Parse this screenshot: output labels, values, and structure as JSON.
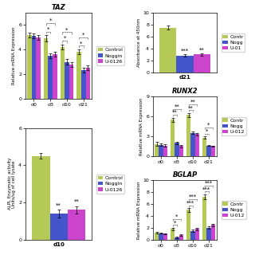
{
  "chart_data": [
    {
      "type": "bar",
      "title": "TAZ",
      "ylabel": "Relative mRNA Expression",
      "categories": [
        "d0",
        "d3",
        "d10",
        "d21"
      ],
      "series": [
        {
          "name": "Control",
          "color": "#b5c957",
          "values": [
            5.2,
            4.9,
            4.2,
            3.8
          ],
          "errors": [
            0.2,
            0.25,
            0.2,
            0.2
          ]
        },
        {
          "name": "Noggin",
          "color": "#4455cc",
          "values": [
            5.1,
            3.5,
            3.0,
            2.3
          ],
          "errors": [
            0.2,
            0.2,
            0.2,
            0.2
          ],
          "significance": [
            null,
            "*",
            "*",
            "*"
          ]
        },
        {
          "name": "U-0126",
          "color": "#cc44cc",
          "values": [
            5.0,
            3.6,
            2.8,
            2.5
          ],
          "errors": [
            0.2,
            0.2,
            0.2,
            0.2
          ],
          "significance": [
            null,
            "*",
            "*",
            "*"
          ]
        }
      ],
      "ylim": [
        0,
        7
      ],
      "yticks": [
        0,
        2,
        4,
        6
      ],
      "legend": "right"
    },
    {
      "type": "bar",
      "ylabel": "ALPL Enzymatic activity\nUnits/ug of cell lysate",
      "xlabel": "d10",
      "categories": [
        null
      ],
      "series": [
        {
          "name": "Control",
          "color": "#b5c957",
          "values": [
            4.5
          ],
          "errors": [
            0.15
          ]
        },
        {
          "name": "Noggin",
          "color": "#4455cc",
          "values": [
            1.4
          ],
          "errors": [
            0.2
          ],
          "significance": [
            "**"
          ]
        },
        {
          "name": "U-0126",
          "color": "#cc44cc",
          "values": [
            1.6
          ],
          "errors": [
            0.2
          ],
          "significance": [
            "**"
          ]
        }
      ],
      "ylim": [
        0,
        6
      ],
      "yticks": [
        0,
        2,
        4,
        6
      ],
      "tick_labels": "y",
      "legend": "right"
    },
    {
      "type": "bar",
      "ylabel": "Absorbance at 450nm",
      "xlabel": "d21",
      "categories": [
        null
      ],
      "series": [
        {
          "name": "Contr",
          "color": "#b5c957",
          "values": [
            7.5
          ],
          "errors": [
            0.3
          ]
        },
        {
          "name": "Nogg",
          "color": "#4455cc",
          "values": [
            2.8
          ],
          "errors": [
            0.2
          ],
          "significance": [
            "***"
          ]
        },
        {
          "name": "U-01",
          "color": "#cc44cc",
          "values": [
            3.0
          ],
          "errors": [
            0.2
          ],
          "significance": [
            "**"
          ]
        }
      ],
      "ylim": [
        0,
        10
      ],
      "yticks": [
        0,
        2,
        4,
        6,
        8,
        10
      ],
      "tick_labels": "y",
      "legend": "right"
    },
    {
      "type": "bar",
      "title": "RUNX2",
      "ylabel": "Relative mRNA Expression",
      "categories": [
        "d0",
        "d3",
        "d10",
        "d21"
      ],
      "series": [
        {
          "name": "Contr",
          "color": "#b5c957",
          "values": [
            1.8,
            5.5,
            6.2,
            2.8
          ],
          "errors": [
            0.3,
            0.3,
            0.3,
            0.2
          ]
        },
        {
          "name": "Nogg",
          "color": "#4455cc",
          "values": [
            1.7,
            2.0,
            3.5,
            1.6
          ],
          "errors": [
            0.2,
            0.2,
            0.2,
            0.1
          ],
          "significance": [
            null,
            "**",
            "**",
            "*"
          ]
        },
        {
          "name": "U-012",
          "color": "#cc44cc",
          "values": [
            1.6,
            1.5,
            3.3,
            1.5
          ],
          "errors": [
            0.2,
            0.2,
            0.2,
            0.1
          ],
          "significance": [
            null,
            "**",
            "**",
            "*"
          ]
        }
      ],
      "ylim": [
        0,
        9
      ],
      "yticks": [
        0,
        3,
        6,
        9
      ],
      "legend": "right"
    },
    {
      "type": "bar",
      "title": "BGLAP",
      "ylabel": "Relative mRNA Expression",
      "categories": [
        "d0",
        "d3",
        "d10",
        "d21"
      ],
      "series": [
        {
          "name": "Contr",
          "color": "#b5c957",
          "values": [
            1.2,
            1.8,
            5.0,
            7.2
          ],
          "errors": [
            0.1,
            0.2,
            0.3,
            0.4
          ]
        },
        {
          "name": "Nogg",
          "color": "#4455cc",
          "values": [
            1.1,
            0.4,
            1.5,
            2.0
          ],
          "errors": [
            0.1,
            0.1,
            0.2,
            0.2
          ],
          "significance": [
            null,
            "*",
            "***",
            "***"
          ]
        },
        {
          "name": "U-012",
          "color": "#cc44cc",
          "values": [
            1.0,
            0.8,
            1.8,
            2.5
          ],
          "errors": [
            0.1,
            0.1,
            0.2,
            0.2
          ],
          "significance": [
            null,
            "*",
            "***",
            "***"
          ]
        }
      ],
      "ylim": [
        0,
        10
      ],
      "yticks": [
        0,
        2,
        4,
        6,
        8,
        10
      ],
      "legend": "right"
    }
  ]
}
